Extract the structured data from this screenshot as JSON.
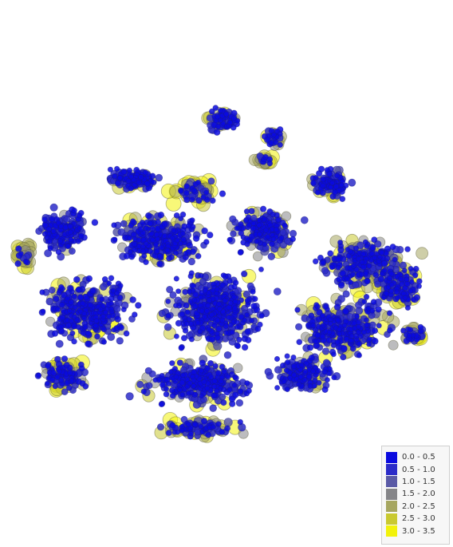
{
  "chart_data": {
    "type": "scatter",
    "title": "",
    "xlabel": "",
    "ylabel": "",
    "axes_visible": false,
    "grid": false,
    "legend_position": "bottom-right",
    "color_scale": "blue-to-yellow",
    "legend": [
      {
        "label": "0.0 - 0.5",
        "min": 0.0,
        "max": 0.5,
        "color": "#0a0adf"
      },
      {
        "label": "0.5 - 1.0",
        "min": 0.5,
        "max": 1.0,
        "color": "#2b2bc9"
      },
      {
        "label": "1.0 - 1.5",
        "min": 1.0,
        "max": 1.5,
        "color": "#5a5aa6"
      },
      {
        "label": "1.5 - 2.0",
        "min": 1.5,
        "max": 2.0,
        "color": "#858588"
      },
      {
        "label": "2.0 - 2.5",
        "min": 2.0,
        "max": 2.5,
        "color": "#a6a660"
      },
      {
        "label": "2.5 - 3.0",
        "min": 2.5,
        "max": 3.0,
        "color": "#c9c930"
      },
      {
        "label": "3.0 - 3.5",
        "min": 3.0,
        "max": 3.5,
        "color": "#f2f20a"
      }
    ]
  }
}
